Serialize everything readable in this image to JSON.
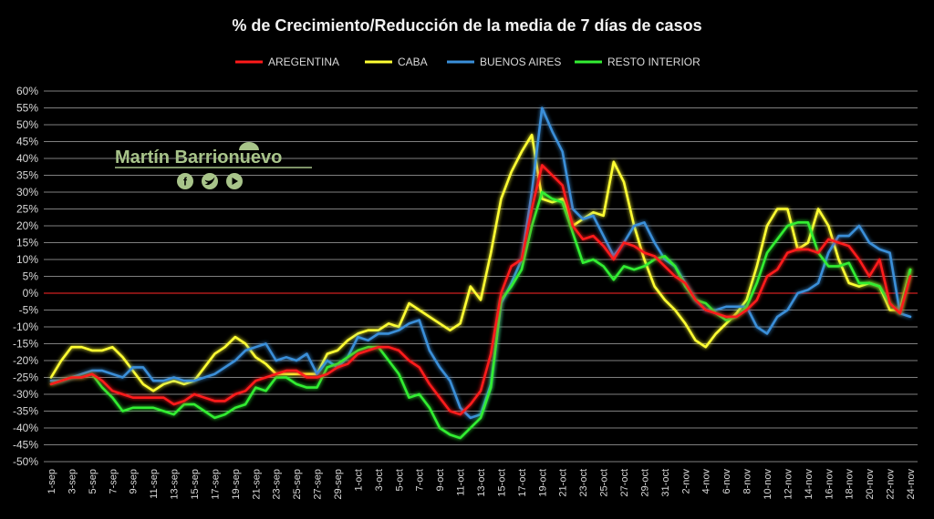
{
  "chart_data": {
    "type": "line",
    "title": "% de Crecimiento/Reducción de la media de 7 días de casos",
    "xlabel": "",
    "ylabel": "",
    "ylim": [
      -50,
      60
    ],
    "yticks": [
      "60%",
      "55%",
      "50%",
      "45%",
      "40%",
      "35%",
      "30%",
      "25%",
      "20%",
      "15%",
      "10%",
      "5%",
      "0%",
      "-5%",
      "-10%",
      "-15%",
      "-20%",
      "-25%",
      "-30%",
      "-35%",
      "-40%",
      "-45%",
      "-50%"
    ],
    "x": [
      "1-sep",
      "2-sep",
      "3-sep",
      "4-sep",
      "5-sep",
      "6-sep",
      "7-sep",
      "8-sep",
      "9-sep",
      "10-sep",
      "11-sep",
      "12-sep",
      "13-sep",
      "14-sep",
      "15-sep",
      "16-sep",
      "17-sep",
      "18-sep",
      "19-sep",
      "20-sep",
      "21-sep",
      "22-sep",
      "23-sep",
      "24-sep",
      "25-sep",
      "26-sep",
      "27-sep",
      "28-sep",
      "29-sep",
      "30-sep",
      "1-oct",
      "2-oct",
      "3-oct",
      "4-oct",
      "5-oct",
      "6-oct",
      "7-oct",
      "8-oct",
      "9-oct",
      "10-oct",
      "11-oct",
      "12-oct",
      "13-oct",
      "14-oct",
      "15-oct",
      "16-oct",
      "17-oct",
      "18-oct",
      "19-oct",
      "20-oct",
      "21-oct",
      "22-oct",
      "23-oct",
      "24-oct",
      "25-oct",
      "26-oct",
      "27-oct",
      "28-oct",
      "29-oct",
      "30-oct",
      "31-oct",
      "1-nov",
      "2-nov",
      "3-nov",
      "4-nov",
      "5-nov",
      "6-nov",
      "7-nov",
      "8-nov",
      "9-nov",
      "10-nov",
      "11-nov",
      "12-nov",
      "13-nov",
      "14-nov",
      "15-nov",
      "16-nov",
      "17-nov",
      "18-nov",
      "19-nov",
      "20-nov",
      "21-nov",
      "22-nov",
      "23-nov",
      "24-nov"
    ],
    "xtick_labels": [
      "1-sep",
      "3-sep",
      "5-sep",
      "7-sep",
      "9-sep",
      "11-sep",
      "13-sep",
      "15-sep",
      "17-sep",
      "19-sep",
      "21-sep",
      "23-sep",
      "25-sep",
      "27-sep",
      "29-sep",
      "1-oct",
      "3-oct",
      "5-oct",
      "7-oct",
      "9-oct",
      "11-oct",
      "13-oct",
      "15-oct",
      "17-oct",
      "19-oct",
      "21-oct",
      "23-oct",
      "25-oct",
      "27-oct",
      "29-oct",
      "31-oct",
      "2-nov",
      "4-nov",
      "6-nov",
      "8-nov",
      "10-nov",
      "12-nov",
      "14-nov",
      "16-nov",
      "18-nov",
      "20-nov",
      "22-nov",
      "24-nov"
    ],
    "series": [
      {
        "name": "AREGENTINA",
        "color": "#ff1a1a",
        "values": [
          -27,
          -26,
          -25,
          -25,
          -24,
          -26,
          -29,
          -30,
          -31,
          -31,
          -31,
          -31,
          -33,
          -32,
          -30,
          -31,
          -32,
          -32,
          -30,
          -29,
          -26,
          -25,
          -24,
          -23,
          -23,
          -25,
          -25,
          -24,
          -22,
          -21,
          -18,
          -17,
          -16,
          -16,
          -17,
          -20,
          -22,
          -27,
          -31,
          -35,
          -36,
          -33,
          -29,
          -18,
          0,
          8,
          10,
          25,
          38,
          35,
          32,
          20,
          16,
          17,
          14,
          10,
          15,
          14,
          12,
          11,
          8,
          5,
          3,
          -2,
          -5,
          -6,
          -7,
          -7,
          -5,
          -2,
          5,
          7,
          12,
          13,
          13,
          12,
          16,
          15,
          14,
          10,
          5,
          10,
          -3,
          -6,
          5
        ]
      },
      {
        "name": "CABA",
        "color": "#ffff33",
        "values": [
          -25,
          -20,
          -16,
          -16,
          -17,
          -17,
          -16,
          -19,
          -23,
          -27,
          -29,
          -27,
          -26,
          -27,
          -26,
          -22,
          -18,
          -16,
          -13,
          -15,
          -19,
          -21,
          -24,
          -24,
          -24,
          -24,
          -24,
          -18,
          -17,
          -14,
          -12,
          -11,
          -11,
          -9,
          -10,
          -3,
          -5,
          -7,
          -9,
          -11,
          -9,
          2,
          -2,
          12,
          28,
          36,
          42,
          47,
          28,
          27,
          28,
          20,
          22,
          24,
          23,
          39,
          33,
          20,
          10,
          2,
          -2,
          -5,
          -9,
          -14,
          -16,
          -12,
          -9,
          -6,
          -2,
          8,
          20,
          25,
          25,
          13,
          15,
          25,
          20,
          10,
          3,
          2,
          3,
          2,
          -5,
          -5,
          7
        ]
      },
      {
        "name": "BUENOS AIRES",
        "color": "#3a8fd9",
        "values": [
          -26,
          -26,
          -25,
          -24,
          -23,
          -23,
          -24,
          -25,
          -22,
          -22,
          -26,
          -26,
          -25,
          -26,
          -26,
          -25,
          -24,
          -22,
          -20,
          -17,
          -16,
          -15,
          -20,
          -19,
          -20,
          -18,
          -24,
          -20,
          -22,
          -19,
          -13,
          -14,
          -12,
          -12,
          -11,
          -9,
          -8,
          -17,
          -22,
          -26,
          -34,
          -37,
          -36,
          -27,
          -3,
          3,
          10,
          30,
          55,
          48,
          42,
          25,
          22,
          23,
          17,
          11,
          15,
          20,
          21,
          15,
          10,
          8,
          3,
          -2,
          -5,
          -5,
          -4,
          -4,
          -4,
          -10,
          -12,
          -7,
          -5,
          0,
          1,
          3,
          12,
          17,
          17,
          20,
          15,
          13,
          12,
          -6,
          -7
        ]
      },
      {
        "name": "RESTO INTERIOR",
        "color": "#33ee33",
        "values": [
          -27,
          -26,
          -25,
          -25,
          -24,
          -28,
          -31,
          -35,
          -34,
          -34,
          -34,
          -35,
          -36,
          -33,
          -33,
          -35,
          -37,
          -36,
          -34,
          -33,
          -28,
          -29,
          -25,
          -25,
          -27,
          -28,
          -28,
          -22,
          -21,
          -19,
          -17,
          -16,
          -16,
          -20,
          -24,
          -31,
          -30,
          -34,
          -40,
          -42,
          -43,
          -40,
          -37,
          -28,
          -2,
          2,
          7,
          20,
          30,
          28,
          27,
          18,
          9,
          10,
          8,
          4,
          8,
          7,
          8,
          10,
          11,
          8,
          2,
          -2,
          -3,
          -6,
          -8,
          -7,
          -4,
          3,
          12,
          16,
          20,
          21,
          21,
          12,
          8,
          8,
          9,
          3,
          3,
          2,
          -3,
          -6,
          7
        ]
      }
    ],
    "legend_position": "top",
    "grid": true,
    "watermark": {
      "name": "Martín Barrionuevo",
      "icons": [
        "facebook-icon",
        "twitter-icon",
        "youtube-icon"
      ]
    }
  }
}
